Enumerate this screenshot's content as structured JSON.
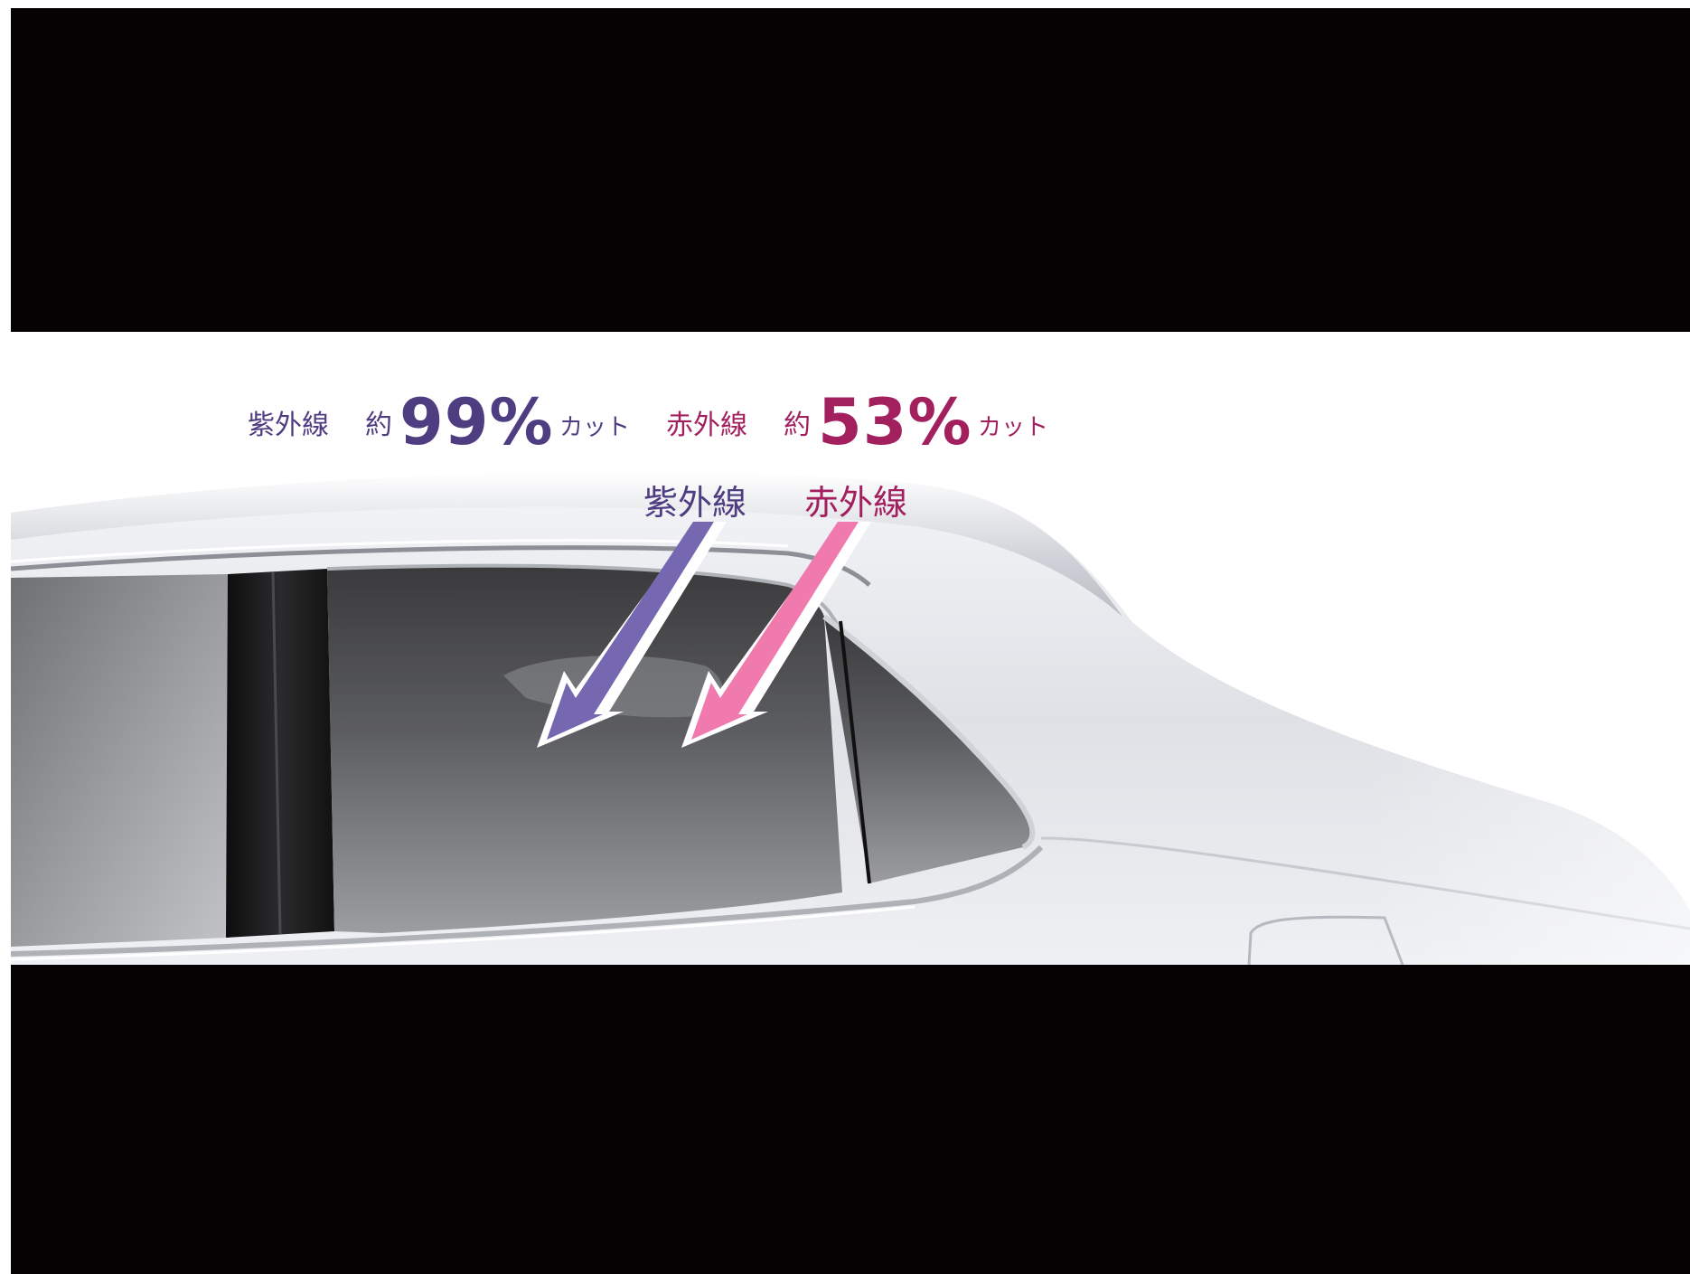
{
  "headline": {
    "uv_label": "紫外線",
    "uv_prefix": "約",
    "uv_value": "99%",
    "uv_suffix": "カット",
    "ir_label": "赤外線",
    "ir_prefix": "約",
    "ir_value": "53%",
    "ir_suffix": "カット"
  },
  "arrows": {
    "uv_label": "紫外線",
    "ir_label": "赤外線"
  },
  "colors": {
    "uv_text": "#4f3d82",
    "ir_text": "#a3205f",
    "uv_arrow": "#7667b1",
    "ir_arrow": "#f07aae",
    "background": "#060102"
  }
}
